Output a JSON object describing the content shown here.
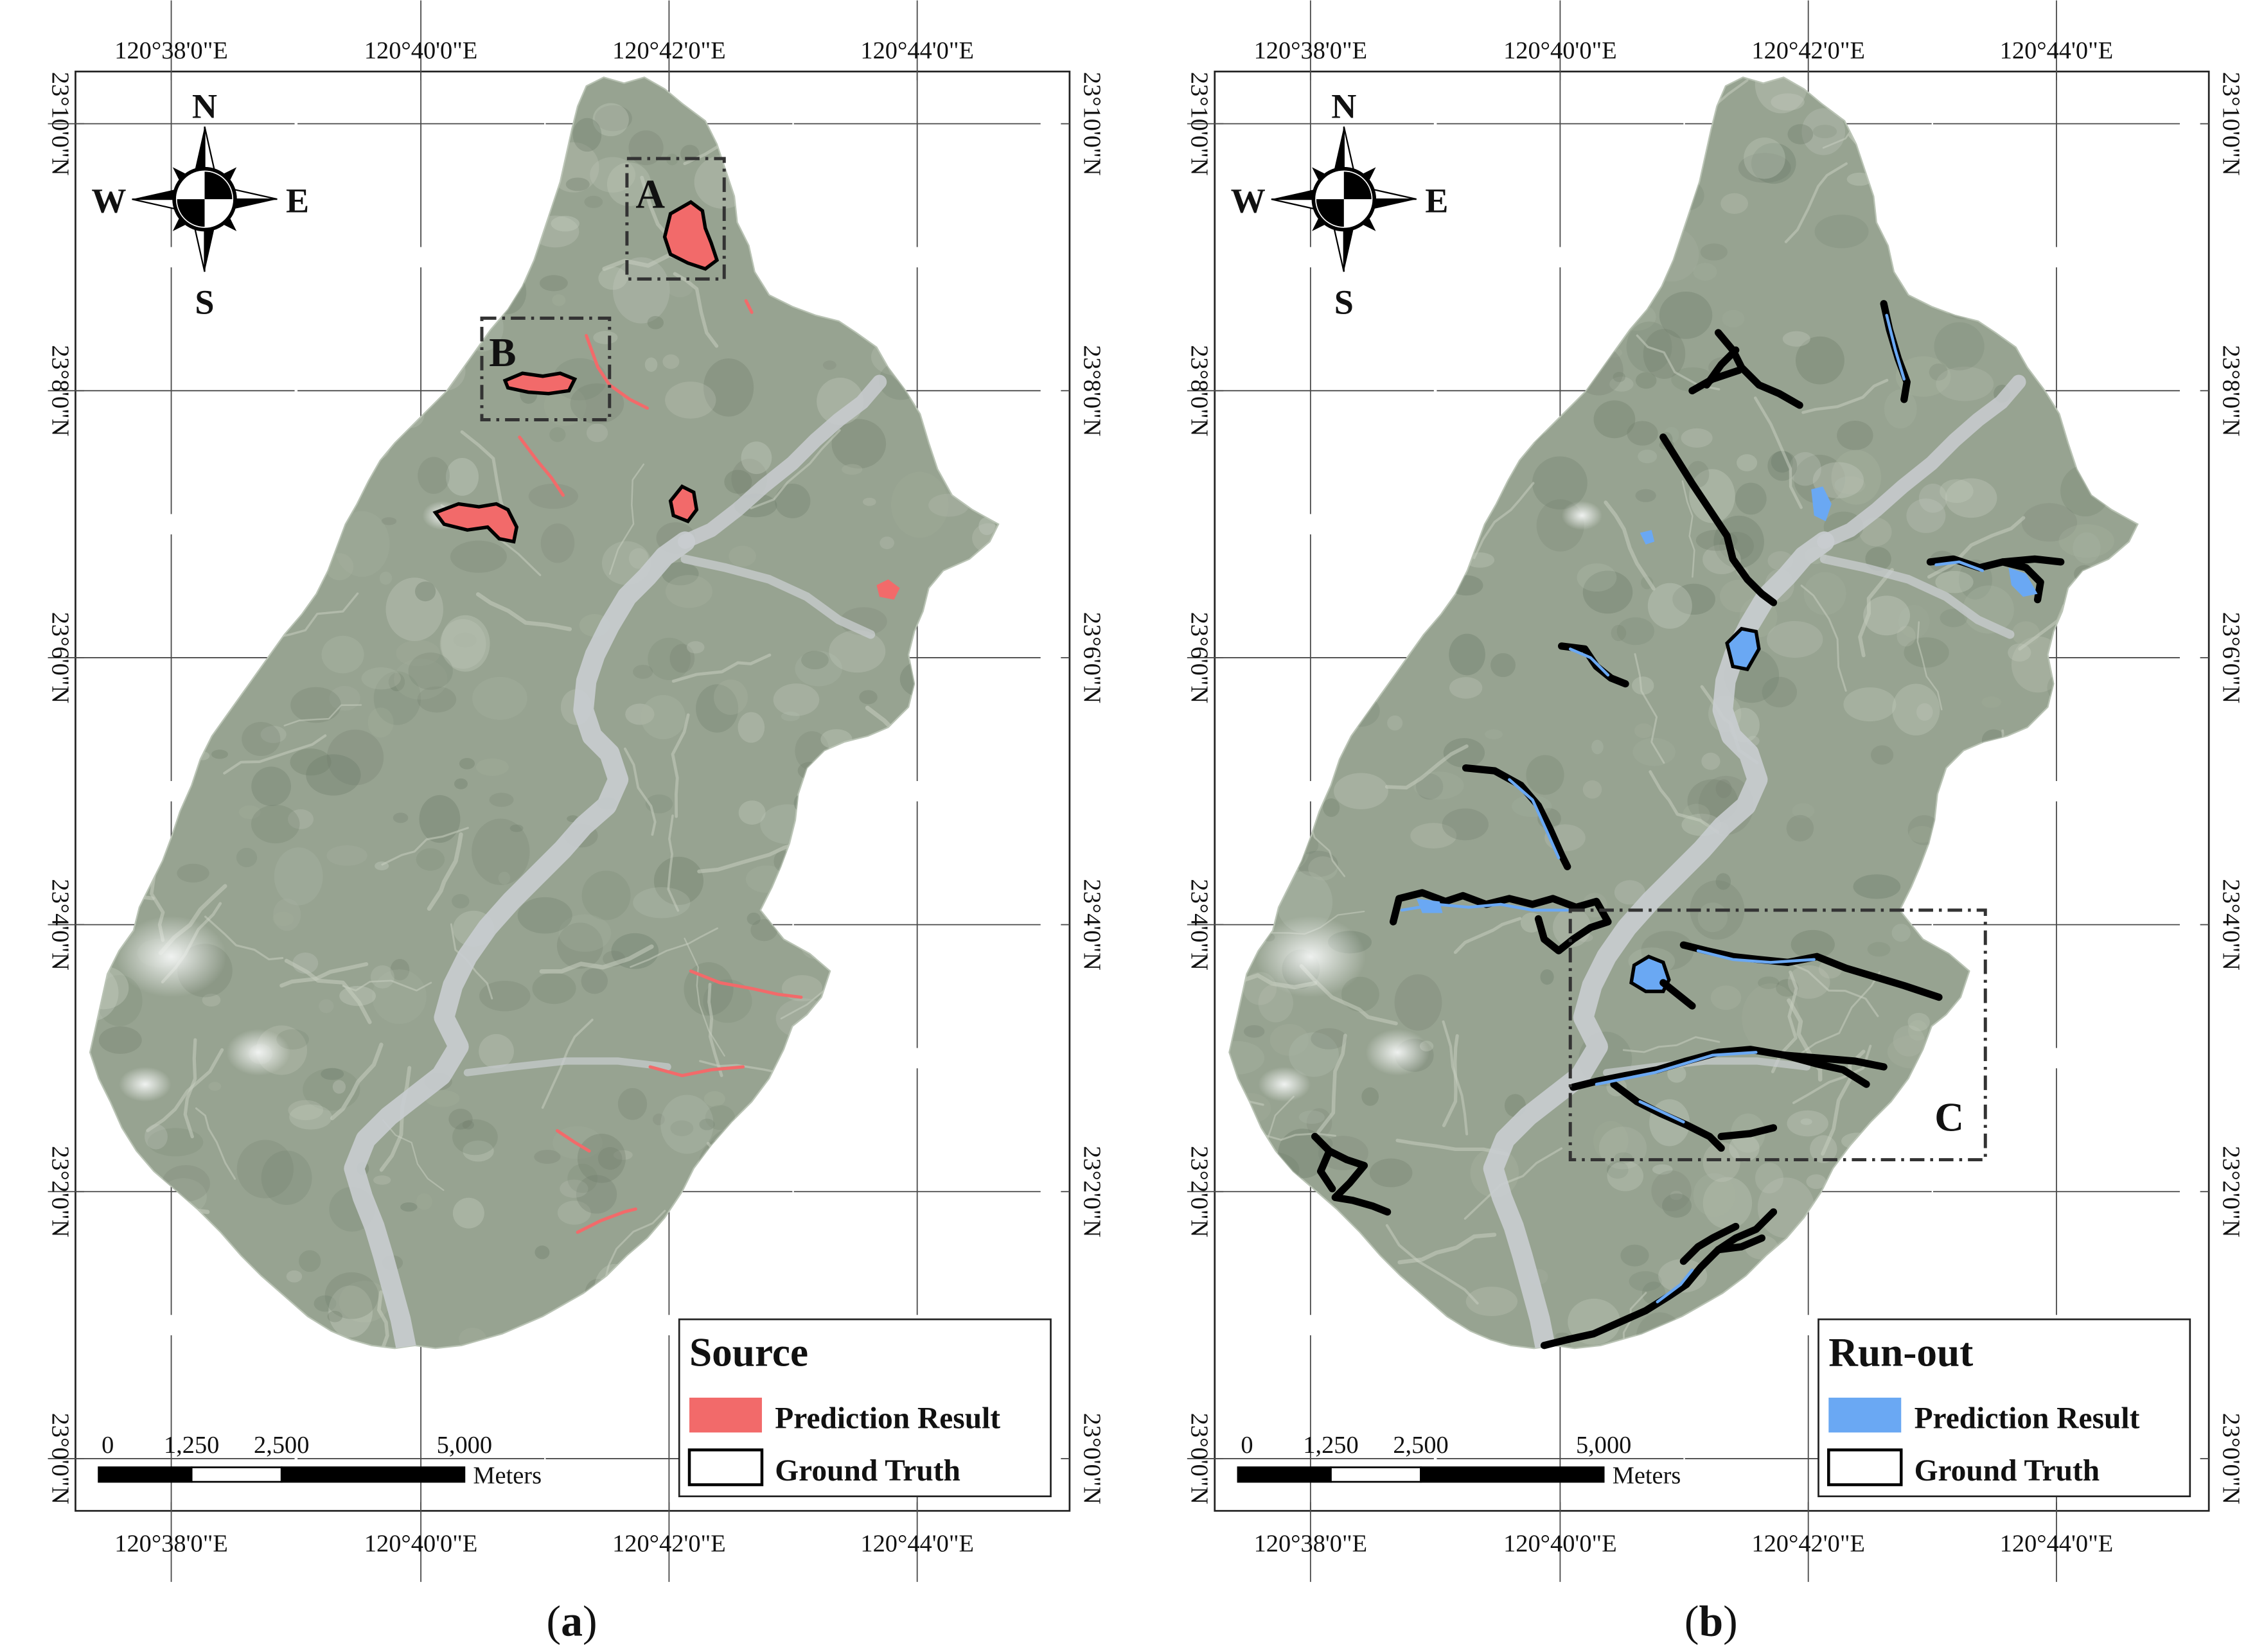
{
  "colors": {
    "source_prediction": "#f26a6a",
    "runout_prediction": "#6aa8f3",
    "basin": "#97a391",
    "basin_light": "#c6cdc0",
    "basin_dark": "#6f7d6b",
    "river": "#d3d5d7"
  },
  "axis_labels": {
    "x_top": [
      "120°38'0\"E",
      "120°40'0\"E",
      "120°42'0\"E",
      "120°44'0\"E"
    ],
    "x_bottom": [
      "120°38'0\"E",
      "120°40'0\"E",
      "120°42'0\"E",
      "120°44'0\"E"
    ],
    "y": [
      "23°10'0\"N",
      "23°8'0\"N",
      "23°6'0\"N",
      "23°4'0\"N",
      "23°2'0\"N",
      "23°0'0\"N"
    ]
  },
  "compass": {
    "n": "N",
    "s": "S",
    "e": "E",
    "w": "W",
    "icon": "north-arrow-icon"
  },
  "scalebar": {
    "labels": [
      "0",
      "1,250",
      "2,500",
      "5,000"
    ],
    "unit": "Meters"
  },
  "panels": [
    {
      "id": "a",
      "caption_open": "(",
      "caption_letter": "a",
      "caption_close": ")",
      "box_labels": [
        "A",
        "B"
      ],
      "legend": {
        "title": "Source",
        "items": [
          {
            "label": "Prediction Result",
            "swatch": "fill"
          },
          {
            "label": "Ground Truth",
            "swatch": "outline"
          }
        ]
      }
    },
    {
      "id": "b",
      "caption_open": "(",
      "caption_letter": "b",
      "caption_close": ")",
      "box_labels": [
        "C"
      ],
      "legend": {
        "title": "Run-out",
        "items": [
          {
            "label": "Prediction Result",
            "swatch": "fill"
          },
          {
            "label": "Ground Truth",
            "swatch": "outline"
          }
        ]
      }
    }
  ]
}
